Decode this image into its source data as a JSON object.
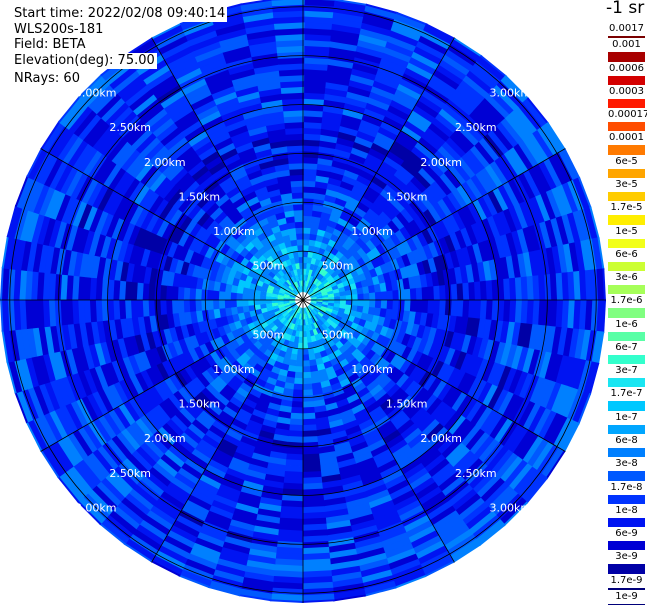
{
  "header": {
    "start_time": "Start time: 2022/02/08 09:40:14",
    "instrument": "WLS200s-181",
    "field": "Field: BETA",
    "elevation": "Elevation(deg): 75.00",
    "nrays": "NRays: 60"
  },
  "colorbar": {
    "unit": "-1 sr",
    "labels": [
      "0.0017",
      "0.001",
      "0.0006",
      "0.0003",
      "0.00017",
      "0.0001",
      "6e-5",
      "3e-5",
      "1.7e-5",
      "1e-5",
      "6e-6",
      "3e-6",
      "1.7e-6",
      "1e-6",
      "6e-7",
      "3e-7",
      "1.7e-7",
      "1e-7",
      "6e-8",
      "3e-8",
      "1.7e-8",
      "1e-8",
      "6e-9",
      "3e-9",
      "1.7e-9",
      "1e-9"
    ],
    "colors": [
      "#7a0000",
      "#a80000",
      "#d40000",
      "#ff1a00",
      "#ff4d00",
      "#ff7a00",
      "#ffa500",
      "#ffcc00",
      "#ffee00",
      "#f2ff1a",
      "#ccff33",
      "#a6ff59",
      "#80ff80",
      "#59ffa6",
      "#33ffcc",
      "#1ae6f2",
      "#00c8ff",
      "#00a6ff",
      "#0080ff",
      "#0059ff",
      "#0033ff",
      "#0014f2",
      "#0000d4",
      "#0000a6",
      "#00007a"
    ]
  },
  "chart_data": {
    "type": "heatmap",
    "projection": "polar (PPI)",
    "field": "BETA",
    "elevation_deg": 75.0,
    "nrays": 60,
    "range_rings_km": [
      0.5,
      1.0,
      1.5,
      2.0,
      2.5,
      3.0
    ],
    "ring_labels": [
      "500m",
      "1.00km",
      "1.50km",
      "2.00km",
      "2.50km",
      "3.00km"
    ],
    "spokes_deg": [
      0,
      30,
      60,
      90,
      120,
      150,
      180,
      210,
      240,
      270,
      300,
      330
    ],
    "max_range_km": 3.1,
    "value_range": [
      1e-09,
      0.0017
    ],
    "value_profile_by_range_km": [
      {
        "range_km": 0.2,
        "level": "1.7e-7"
      },
      {
        "range_km": 0.5,
        "level": "6e-8"
      },
      {
        "range_km": 1.0,
        "level": "1.7e-8"
      },
      {
        "range_km": 1.5,
        "level": "6e-9"
      },
      {
        "range_km": 2.0,
        "level": "1e-8"
      },
      {
        "range_km": 2.5,
        "level": "1e-8"
      },
      {
        "range_km": 3.0,
        "level": "1.7e-8"
      }
    ]
  }
}
